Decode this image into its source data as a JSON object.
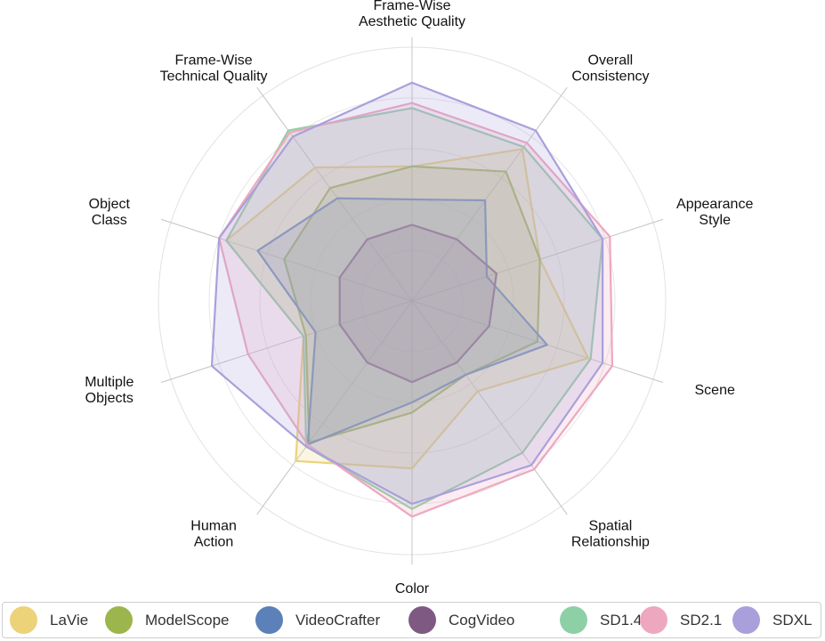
{
  "chart_data": {
    "type": "radar",
    "axes": [
      "Frame-Wise\nAesthetic Quality",
      "Overall\nConsistency",
      "Appearance\nStyle",
      "Scene",
      "Spatial\nRelationship",
      "Color",
      "Human\nAction",
      "Multiple\nObjects",
      "Object\nClass",
      "Frame-Wise\nTechnical Quality"
    ],
    "rlim": [
      0,
      1
    ],
    "grid": true,
    "legend_position": "bottom",
    "series": [
      {
        "name": "LaVie",
        "color": "#ecd279",
        "values": [
          0.53,
          0.74,
          0.53,
          0.73,
          0.44,
          0.66,
          0.78,
          0.45,
          0.77,
          0.65
        ]
      },
      {
        "name": "ModelScope",
        "color": "#9cb54c",
        "values": [
          0.53,
          0.63,
          0.53,
          0.52,
          0.36,
          0.44,
          0.69,
          0.44,
          0.53,
          0.55
        ]
      },
      {
        "name": "VideoCrafter",
        "color": "#5b81b8",
        "values": [
          0.4,
          0.49,
          0.31,
          0.56,
          0.36,
          0.4,
          0.7,
          0.4,
          0.64,
          0.5
        ]
      },
      {
        "name": "CogVideo",
        "color": "#7e5a82",
        "values": [
          0.3,
          0.3,
          0.35,
          0.32,
          0.3,
          0.32,
          0.3,
          0.3,
          0.3,
          0.3
        ]
      },
      {
        "name": "SD1.4",
        "color": "#8ed0a5",
        "values": [
          0.76,
          0.75,
          0.79,
          0.74,
          0.74,
          0.82,
          0.71,
          0.45,
          0.77,
          0.83
        ]
      },
      {
        "name": "SD2.1",
        "color": "#eda8c0",
        "values": [
          0.78,
          0.77,
          0.82,
          0.83,
          0.82,
          0.85,
          0.7,
          0.68,
          0.8,
          0.82
        ]
      },
      {
        "name": "SDXL",
        "color": "#a9a0db",
        "values": [
          0.86,
          0.83,
          0.79,
          0.79,
          0.8,
          0.8,
          0.71,
          0.83,
          0.8,
          0.8
        ]
      }
    ]
  }
}
